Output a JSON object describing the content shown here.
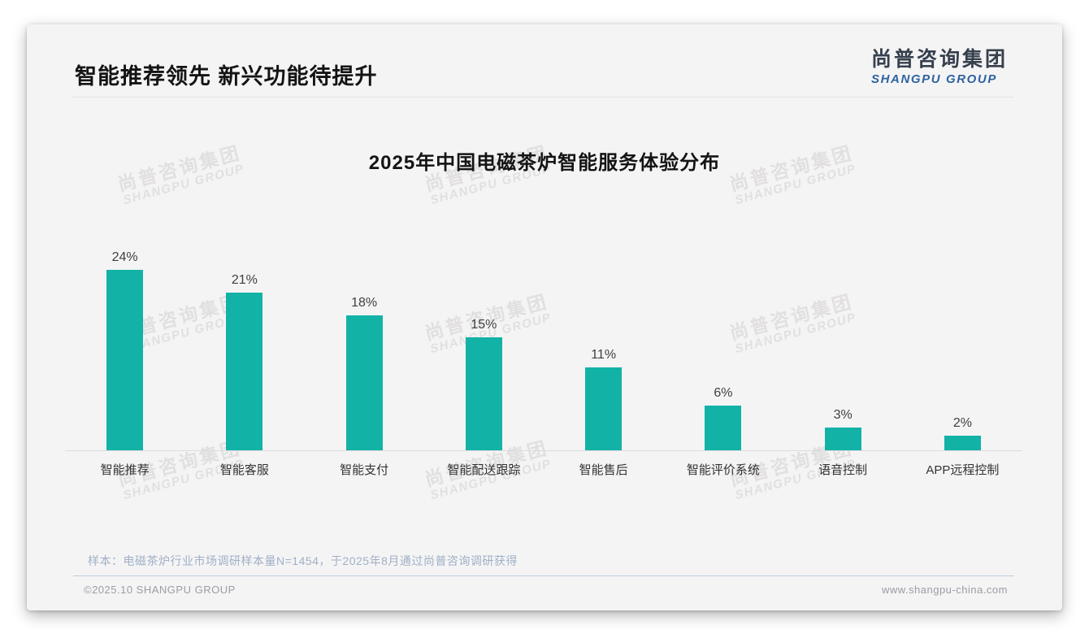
{
  "header": {
    "title": "智能推荐领先 新兴功能待提升"
  },
  "logo": {
    "cn": "尚普咨询集团",
    "en": "SHANGPU GROUP"
  },
  "watermark": {
    "cn": "尚普咨询集团",
    "en": "SHANGPU GROUP"
  },
  "chart_data": {
    "type": "bar",
    "title": "2025年中国电磁茶炉智能服务体验分布",
    "categories": [
      "智能推荐",
      "智能客服",
      "智能支付",
      "智能配送跟踪",
      "智能售后",
      "智能评价系统",
      "语音控制",
      "APP远程控制"
    ],
    "values": [
      24,
      21,
      18,
      15,
      11,
      6,
      3,
      2
    ],
    "value_labels": [
      "24%",
      "21%",
      "18%",
      "15%",
      "11%",
      "6%",
      "3%",
      "2%"
    ],
    "xlabel": "",
    "ylabel": "",
    "ylim": [
      0,
      26
    ],
    "grid": false,
    "legend": false,
    "bar_color": "#12b2a7"
  },
  "note": "样本：电磁茶炉行业市场调研样本量N=1454，于2025年8月通过尚普咨询调研获得",
  "footer": {
    "left": "©2025.10 SHANGPU GROUP",
    "right": "www.shangpu-china.com"
  },
  "colors": {
    "bar": "#12b2a7",
    "logo_cn": "#36404d",
    "logo_en": "#2d639f",
    "note": "#9fb0c5",
    "footer_text": "#999da3",
    "card_bg": "#f5f4f5"
  }
}
